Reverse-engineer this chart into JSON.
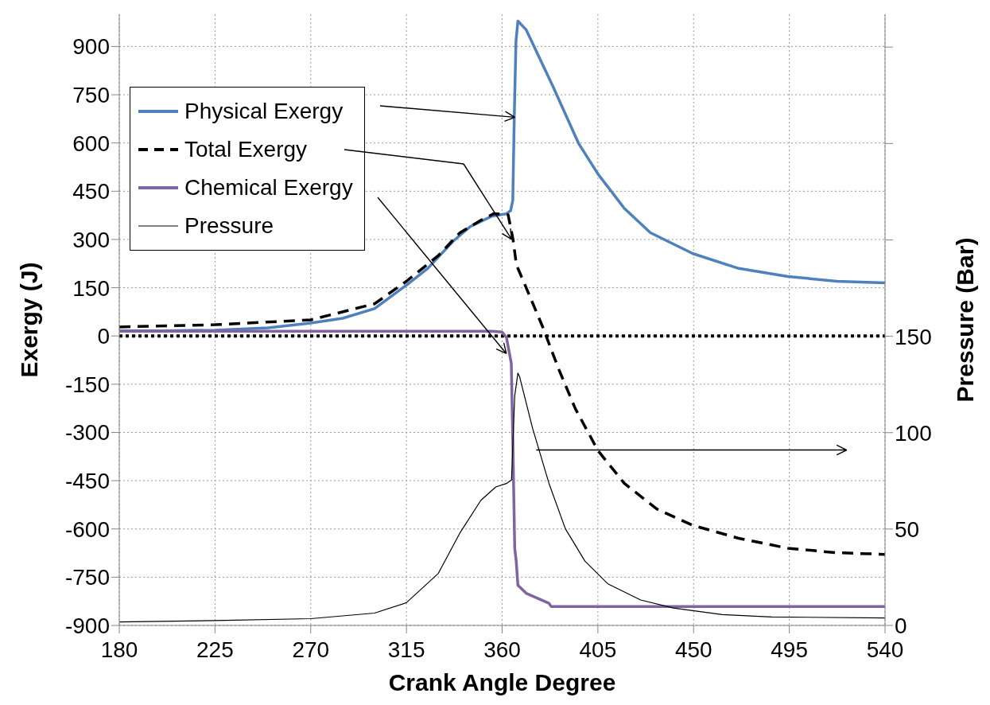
{
  "chart_data": {
    "type": "line",
    "xlabel": "Crank Angle Degree",
    "ylabel": "Exergy (J)",
    "y2label": "Pressure (Bar)",
    "xlim": [
      180,
      540
    ],
    "xticks": [
      180,
      225,
      270,
      315,
      360,
      405,
      450,
      495,
      540
    ],
    "ylim": [
      -900,
      1000
    ],
    "yticks": [
      -900,
      -750,
      -600,
      -450,
      -300,
      -150,
      0,
      150,
      300,
      450,
      600,
      750,
      900
    ],
    "y2lim": [
      0,
      317
    ],
    "y2ticks": [
      0,
      50,
      100,
      150,
      {
        "value": 200,
        "label": null
      },
      {
        "value": 250,
        "label": null
      },
      {
        "value": 300,
        "label": null
      }
    ],
    "grid": true,
    "legend": "top left",
    "marker": "none",
    "ref_lines": [
      {
        "axis": "y",
        "value": 0,
        "color": "#000000",
        "line_style": "dotted"
      }
    ],
    "series": [
      {
        "name": "Physical Exergy",
        "color": "#4f81bd",
        "line_style": "solid",
        "x": [
          180,
          200,
          225,
          250,
          270,
          285,
          300,
          315,
          325,
          337,
          345,
          355,
          362,
          364,
          365,
          365.7,
          366.5,
          367.4,
          371.3,
          383.6,
          395.9,
          405.1,
          417.4,
          429.7,
          449.7,
          471.2,
          494.3,
          517.4,
          540
        ],
        "values": [
          16,
          16,
          18,
          25,
          40,
          55,
          85,
          158,
          210,
          295,
          340,
          372,
          380,
          390,
          422,
          684,
          917,
          979,
          952,
          780,
          599,
          503,
          397,
          321,
          256,
          210,
          185,
          170,
          165
        ]
      },
      {
        "name": "Total Exergy",
        "color": "#000000",
        "line_style": "dashed",
        "x": [
          180,
          225,
          270,
          300,
          315,
          330,
          340,
          350,
          356,
          362.8,
          365.1,
          366.7,
          371.3,
          379,
          386.7,
          394.4,
          405.1,
          417.4,
          432.7,
          449.7,
          471.2,
          494.3,
          517.4,
          540
        ],
        "values": [
          28,
          35,
          50,
          100,
          170,
          250,
          320,
          360,
          380,
          377,
          301,
          221,
          150,
          29,
          -105,
          -226,
          -357,
          -458,
          -538,
          -589,
          -629,
          -660,
          -674,
          -679
        ]
      },
      {
        "name": "Chemical Exergy",
        "color": "#8064a2",
        "line_style": "solid",
        "x": [
          180,
          300,
          355,
          360,
          362,
          364.3,
          365.1,
          365.9,
          366.6,
          367.4,
          371.3,
          382,
          383,
          540
        ],
        "values": [
          15,
          15,
          15,
          12,
          -4,
          -85,
          -357,
          -660,
          -699,
          -775,
          -800,
          -831,
          -841,
          -841
        ]
      },
      {
        "name": "Pressure",
        "color": "#000000",
        "line_style": "solid",
        "axis": "y2",
        "x": [
          180,
          225,
          270,
          300,
          315,
          330,
          340,
          350,
          357,
          362,
          364.4,
          365.9,
          367.4,
          368.2,
          374.3,
          382,
          389.7,
          398.9,
          409.7,
          425.1,
          440.5,
          463.5,
          486.6,
          540
        ],
        "values": [
          1.8,
          2.5,
          3.5,
          6.4,
          11.8,
          27,
          47.7,
          64.9,
          71.8,
          73.6,
          75.4,
          119,
          130.9,
          129,
          102.3,
          73.7,
          50.2,
          33.4,
          21.6,
          13.2,
          9,
          5.6,
          4.4,
          3.9
        ]
      }
    ]
  }
}
